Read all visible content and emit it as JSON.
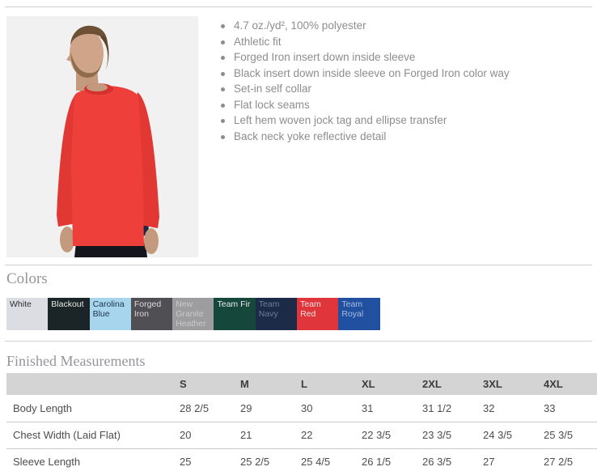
{
  "product": {
    "photo_alt": "Model wearing red long sleeve athletic tee",
    "features": [
      "4.7 oz./yd², 100% polyester",
      "Athletic fit",
      "Forged Iron insert down inside sleeve",
      "Black insert down inside sleeve on Forged Iron color way",
      "Set-in self collar",
      "Flat lock seams",
      "Left hem woven jock tag and ellipse transfer",
      "Back neck yoke reflective detail"
    ]
  },
  "colors_section": {
    "title": "Colors",
    "swatches": [
      {
        "name": "White",
        "bg": "#dcdde3",
        "text_color": "#2e2e2e"
      },
      {
        "name": "Blackout",
        "bg": "#1b2527",
        "text_color": "#e9e9e9"
      },
      {
        "name": "Carolina Blue",
        "bg": "#a7d5ee",
        "text_color": "#20364a"
      },
      {
        "name": "Forged Iron",
        "bg": "#4f4f54",
        "text_color": "#dcdcdc"
      },
      {
        "name": "New Granite Heather",
        "bg": "#9d9da0",
        "text_color": "#c9c9cb"
      },
      {
        "name": "Team Fir",
        "bg": "#15483a",
        "text_color": "#e9e9e9"
      },
      {
        "name": "Team Navy",
        "bg": "#1c2b48",
        "text_color": "#6d7c9c"
      },
      {
        "name": "Team Red",
        "bg": "#e0353b",
        "text_color": "#f4e3e4"
      },
      {
        "name": "Team Royal",
        "bg": "#20509f",
        "text_color": "#a9bedf"
      }
    ]
  },
  "measurements_section": {
    "title": "Finished Measurements",
    "columns": [
      "S",
      "M",
      "L",
      "XL",
      "2XL",
      "3XL",
      "4XL"
    ],
    "rows": [
      {
        "label": "Body Length",
        "values": [
          "28 2/5",
          "29",
          "30",
          "31",
          "31 1/2",
          "32",
          "33"
        ]
      },
      {
        "label": "Chest Width (Laid Flat)",
        "values": [
          "20",
          "21",
          "22",
          "22 3/5",
          "23 3/5",
          "24 3/5",
          "25 3/5"
        ]
      },
      {
        "label": "Sleeve Length",
        "values": [
          "25",
          "25 2/5",
          "25 4/5",
          "26 1/5",
          "26 3/5",
          "27",
          "27 2/5"
        ]
      }
    ]
  }
}
